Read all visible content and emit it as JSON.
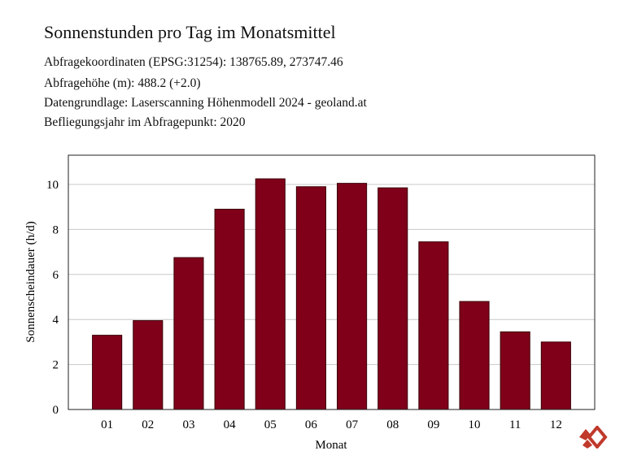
{
  "header": {
    "title": "Sonnenstunden pro Tag im Monatsmittel",
    "info_lines": [
      "Abfragekoordinaten (EPSG:31254): 138765.89, 273747.46",
      "Abfragehöhe (m): 488.2 (+2.0)",
      "Datengrundlage: Laserscanning Höhenmodell 2024 - geoland.at",
      "Befliegungsjahr im Abfragepunkt: 2020"
    ]
  },
  "chart_data": {
    "type": "bar",
    "categories": [
      "01",
      "02",
      "03",
      "04",
      "05",
      "06",
      "07",
      "08",
      "09",
      "10",
      "11",
      "12"
    ],
    "values": [
      3.3,
      3.95,
      6.75,
      8.9,
      10.25,
      9.9,
      10.05,
      9.85,
      7.45,
      4.8,
      3.45,
      3.0
    ],
    "xlabel": "Monat",
    "ylabel": "Sonnenscheindauer (h/d)",
    "ylim": [
      0,
      11.3
    ],
    "yticks": [
      0,
      2,
      4,
      6,
      8,
      10
    ],
    "grid": true,
    "legend": "none",
    "bar_color": "#80001a",
    "grid_color": "#c8c8c8"
  },
  "logo": {
    "color": "#c0392b"
  }
}
